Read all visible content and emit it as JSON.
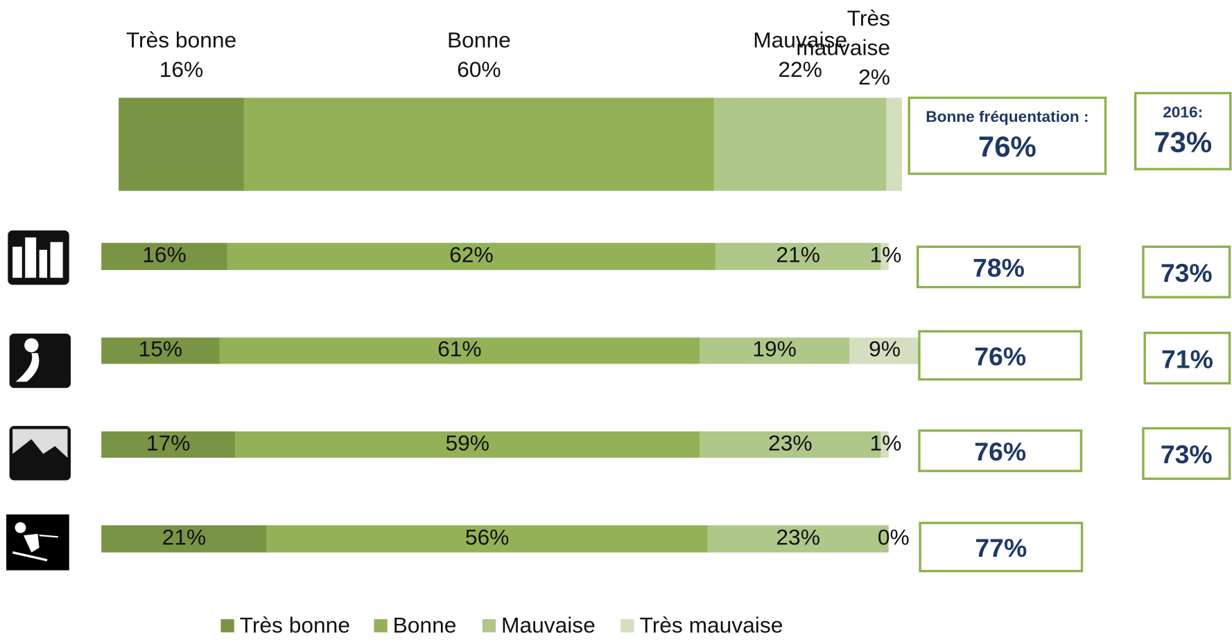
{
  "chart_data": {
    "type": "stacked_bar_horizontal",
    "categories": [
      null,
      null,
      null,
      null,
      null
    ],
    "series": [
      {
        "name": "Très bonne",
        "color": "#7a9445",
        "values": [
          16,
          16,
          15,
          17,
          21
        ],
        "value_labels": [
          "16%",
          "16%",
          "15%",
          "17%",
          "21%"
        ]
      },
      {
        "name": "Bonne",
        "color": "#94b158",
        "values": [
          60,
          62,
          61,
          59,
          56
        ],
        "value_labels": [
          "60%",
          "62%",
          "61%",
          "59%",
          "56%"
        ]
      },
      {
        "name": "Mauvaise",
        "color": "#afc788",
        "values": [
          22,
          21,
          19,
          23,
          23
        ],
        "value_labels": [
          "22%",
          "21%",
          "19%",
          "23%",
          "23%"
        ]
      },
      {
        "name": "Très mauvaise",
        "color": "#d4dfc0",
        "values": [
          2,
          1,
          9,
          1,
          0
        ],
        "value_labels": [
          "2%",
          "1%",
          "9%",
          "1%",
          "0%"
        ]
      }
    ],
    "xlim": [
      0,
      100
    ],
    "good_attendance": {
      "label": "Bonne fréquentation :",
      "values": [
        76,
        78,
        76,
        76,
        77
      ],
      "value_labels": [
        "76%",
        "78%",
        "76%",
        "76%",
        "77%"
      ]
    },
    "year_2016": {
      "label": "2016:",
      "values": [
        73,
        73,
        71,
        73,
        null
      ],
      "value_labels": [
        "73%",
        "73%",
        "71%",
        "73%",
        null
      ]
    },
    "legend": true
  }
}
